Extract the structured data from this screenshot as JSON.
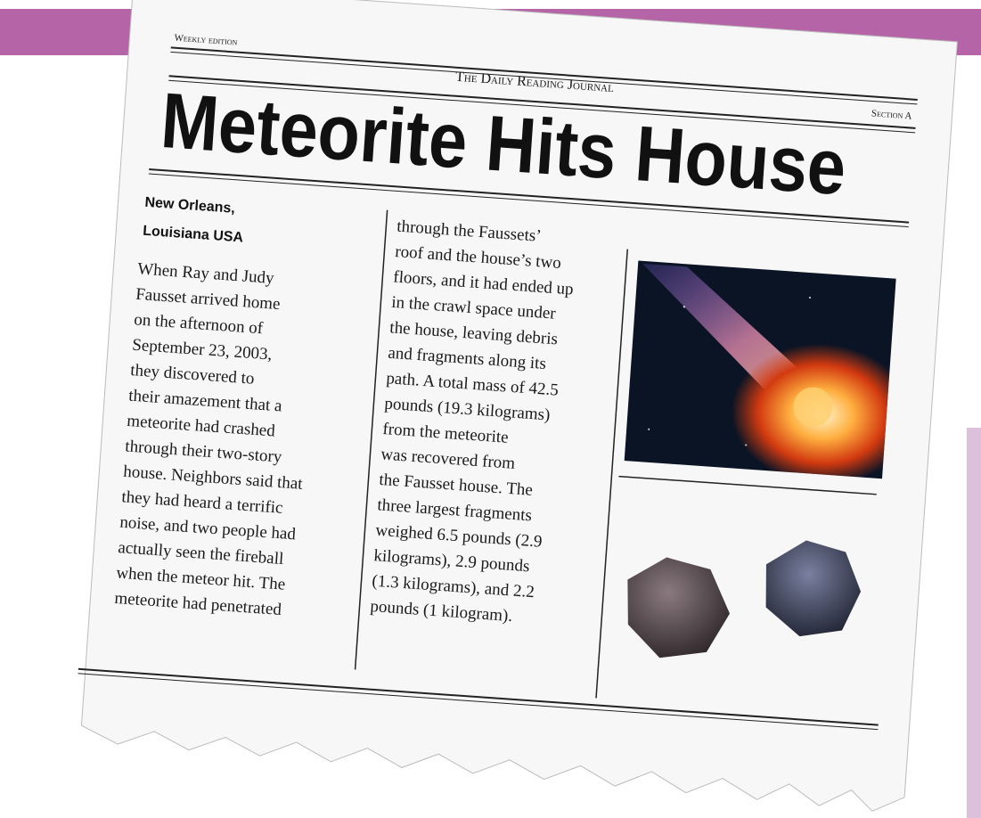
{
  "header": {
    "edition": "Weekly edition",
    "masthead": "The Daily Reading Journal",
    "section": "Section A"
  },
  "article": {
    "headline": "Meteorite Hits House",
    "dateline": [
      "New Orleans,",
      "Louisiana USA"
    ],
    "column_1": [
      "When Ray and Judy",
      "Fausset arrived home",
      "on the afternoon of",
      "September 23, 2003,",
      "they discovered to",
      "their amazement that a",
      "meteorite had crashed",
      "through their two-story",
      "house. Neighbors said that",
      "they had heard a terrific",
      "noise, and two people had",
      "actually seen the fireball",
      "when the meteor hit. The",
      "meteorite had penetrated"
    ],
    "column_2": [
      "through the Faussets’",
      "roof and the house’s two",
      "floors, and it had ended up",
      "in the crawl space under",
      "the house, leaving debris",
      "and fragments along its",
      "path. A total mass of 42.5",
      "pounds (19.3 kilograms)",
      "from the meteorite",
      "was recovered from",
      "the Fausset house. The",
      "three largest fragments",
      "weighed 6.5 pounds (2.9",
      "kilograms), 2.9 pounds",
      "(1.3 kilograms), and 2.2",
      "pounds (1 kilogram)."
    ]
  }
}
